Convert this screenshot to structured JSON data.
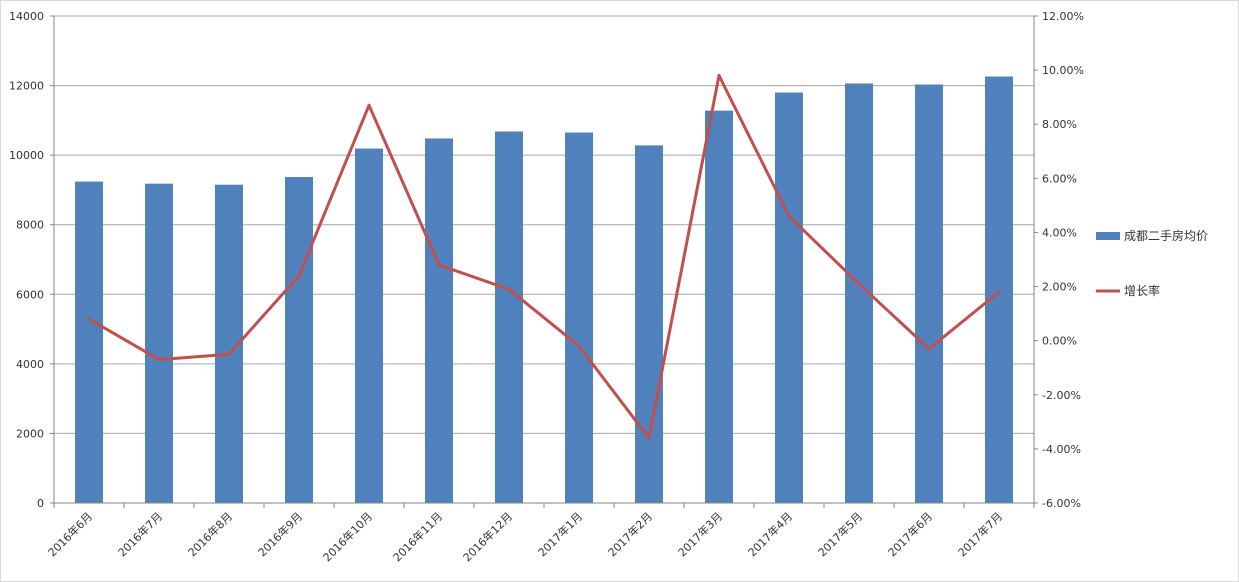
{
  "chart_data": {
    "type": "bar",
    "categories": [
      "2016年6月",
      "2016年7月",
      "2016年8月",
      "2016年9月",
      "2016年10月",
      "2016年11月",
      "2016年12月",
      "2017年1月",
      "2017年2月",
      "2017年3月",
      "2017年4月",
      "2017年5月",
      "2017年6月",
      "2017年7月"
    ],
    "series": [
      {
        "name": "成都二手房均价",
        "type": "bar",
        "axis": "left",
        "color": "#4F81BD",
        "values": [
          9240,
          9180,
          9150,
          9370,
          10190,
          10480,
          10680,
          10650,
          10280,
          11280,
          11800,
          12060,
          12030,
          12260
        ]
      },
      {
        "name": "增长率",
        "type": "line",
        "axis": "right",
        "color": "#C0504D",
        "values": [
          0.8,
          -0.7,
          -0.5,
          2.4,
          8.7,
          2.8,
          1.9,
          -0.2,
          -3.6,
          9.8,
          4.6,
          2.1,
          -0.3,
          1.8
        ]
      }
    ],
    "y_left": {
      "min": 0,
      "max": 14000,
      "ticks": [
        "0",
        "2000",
        "4000",
        "6000",
        "8000",
        "10000",
        "12000",
        "14000"
      ]
    },
    "y_right": {
      "min": -6,
      "max": 12,
      "ticks": [
        "-6.00%",
        "-4.00%",
        "-2.00%",
        "0.00%",
        "2.00%",
        "4.00%",
        "6.00%",
        "8.00%",
        "10.00%",
        "12.00%"
      ]
    },
    "grid": true,
    "legend_position": "right"
  }
}
